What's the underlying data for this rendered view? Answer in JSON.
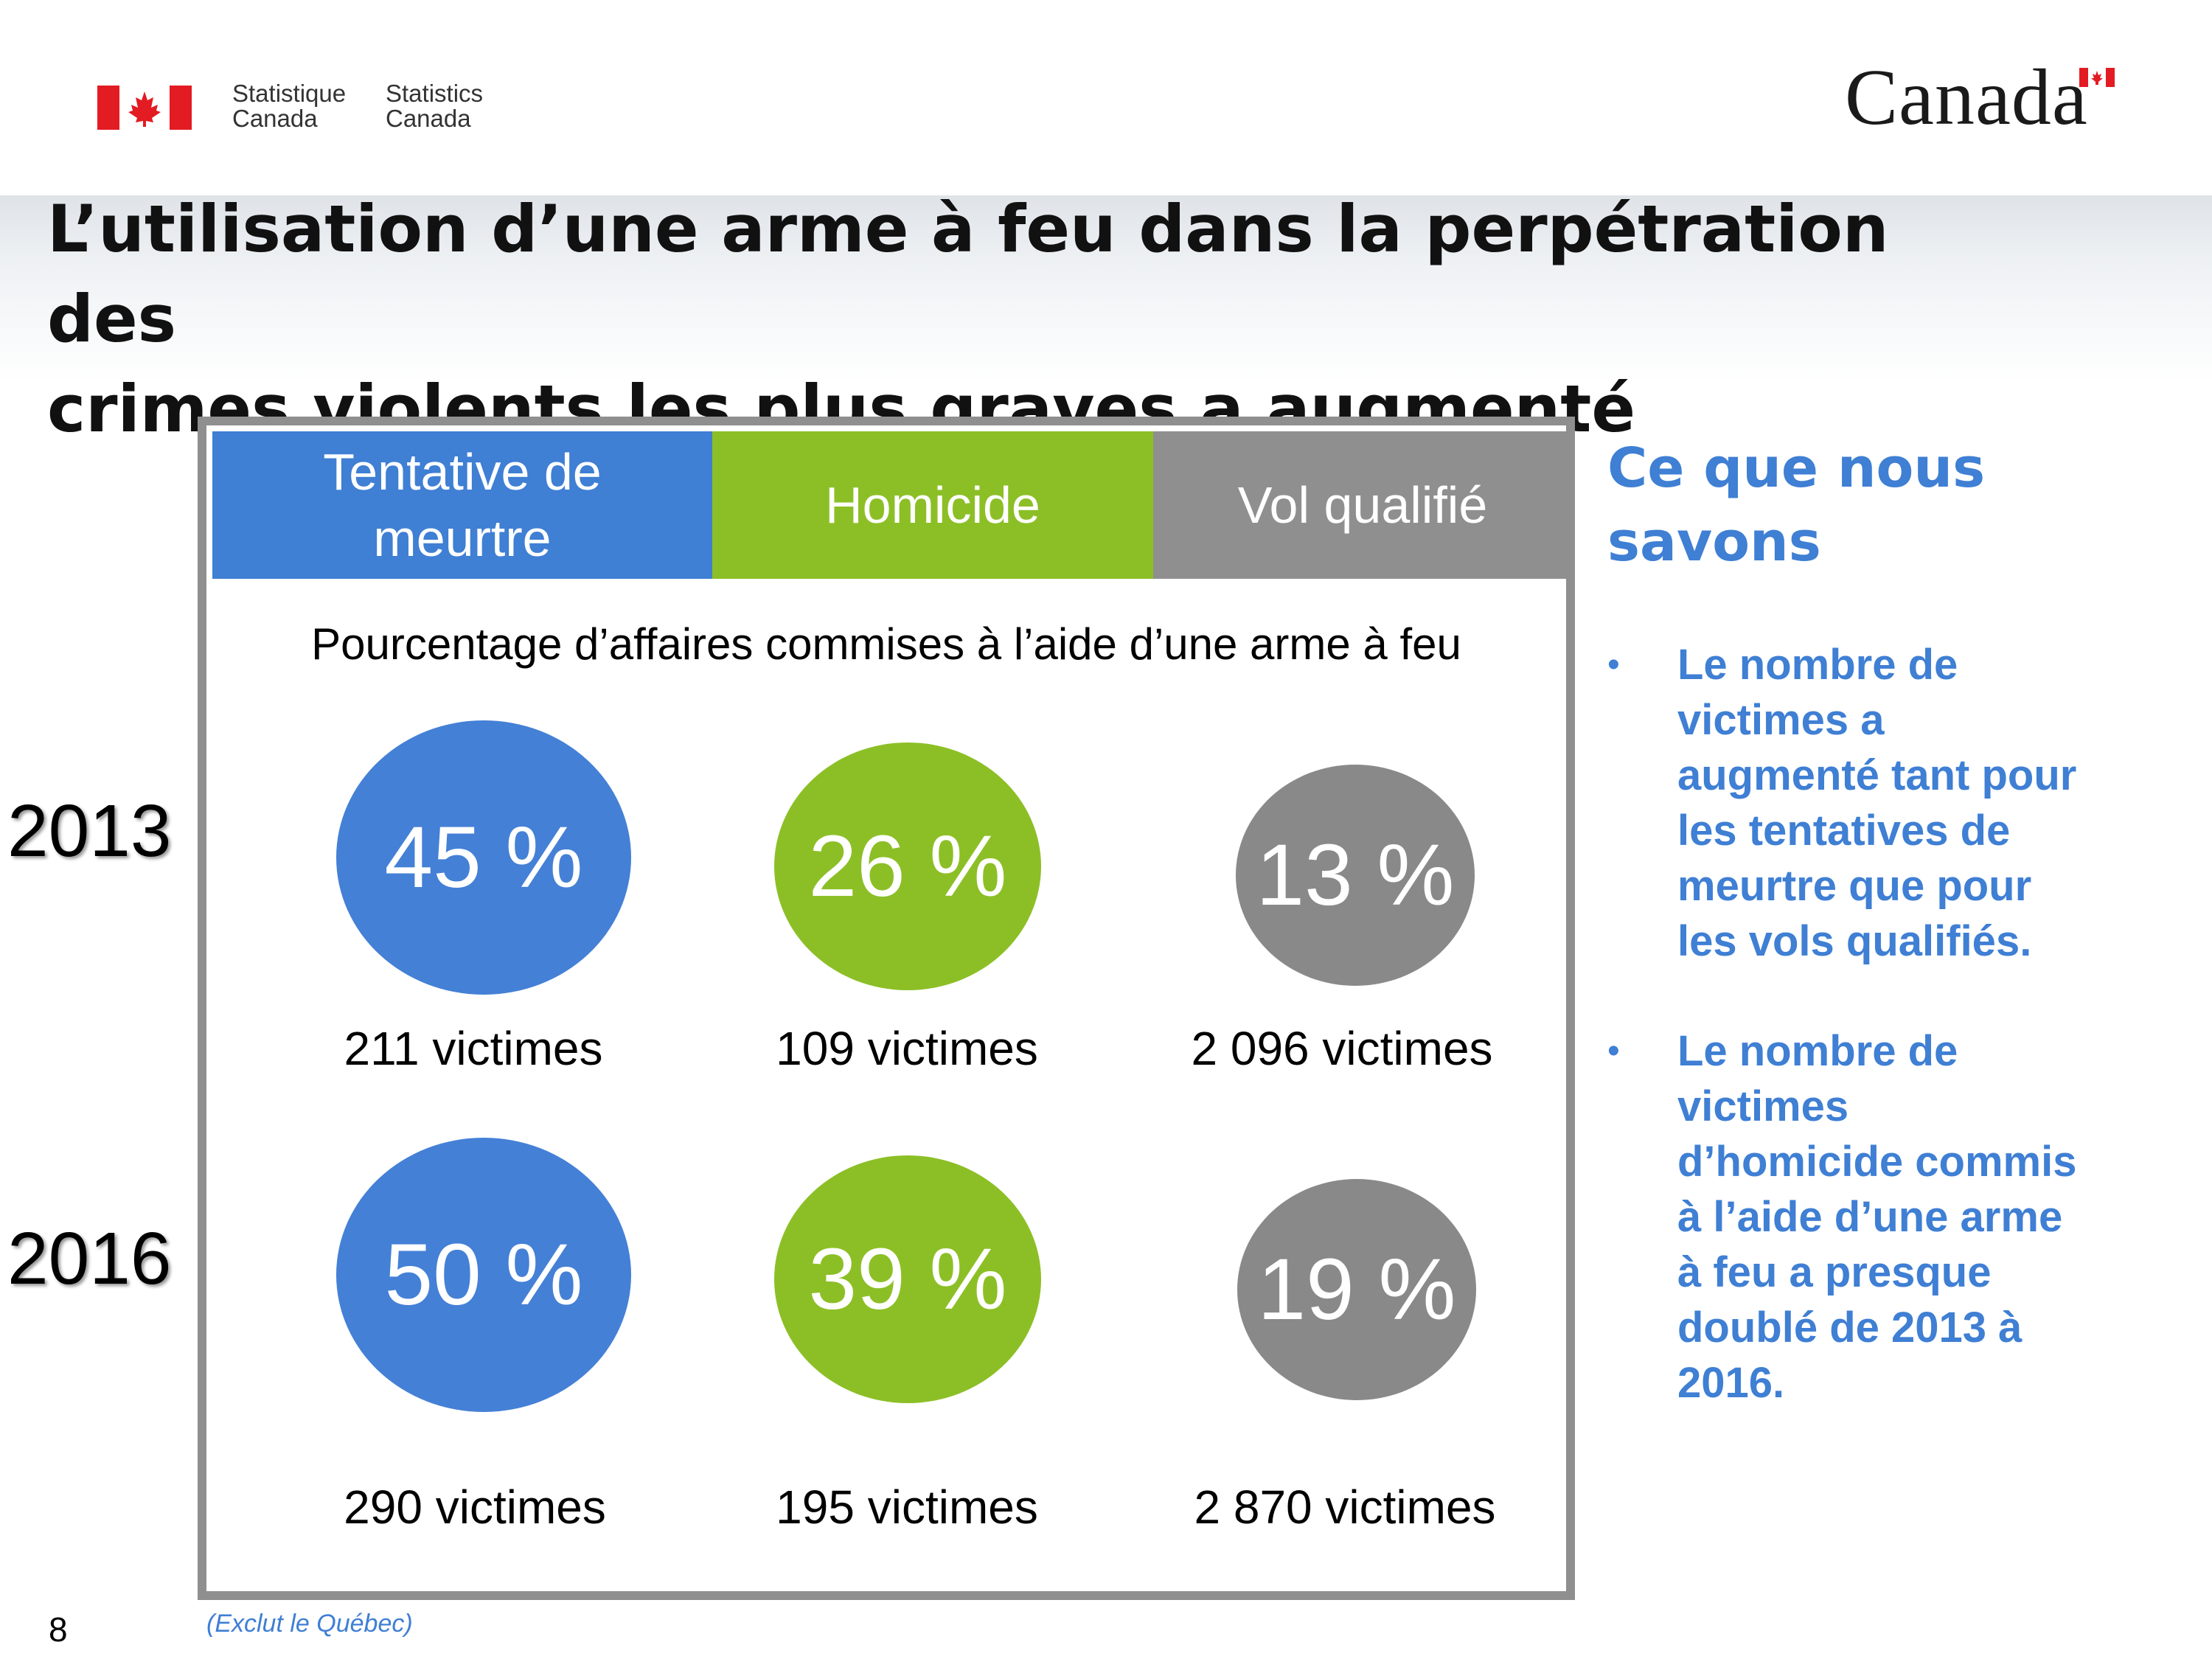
{
  "header": {
    "signature_fr": [
      "Statistique",
      "Canada"
    ],
    "signature_en": [
      "Statistics",
      "Canada"
    ],
    "wordmark": "Canada",
    "colors": {
      "flag_red": "#e31b23"
    }
  },
  "title_lines": [
    "L’utilisation d’une arme à feu dans la perpétration des",
    "crimes violents les plus graves a augmenté"
  ],
  "table": {
    "columns": [
      {
        "label_lines": [
          "Tentative de",
          "meurtre"
        ],
        "color": "#3f7fd4"
      },
      {
        "label_lines": [
          "Homicide"
        ],
        "color": "#8cbf26"
      },
      {
        "label_lines": [
          "Vol qualifié"
        ],
        "color": "#8f8f8f"
      }
    ],
    "subtitle": "Pourcentage d’affaires commises à l’aide d’une arme à feu",
    "rows": [
      {
        "year": "2013",
        "cells": [
          {
            "percent": "45 %",
            "victims": "211 victimes"
          },
          {
            "percent": "26 %",
            "victims": "109 victimes"
          },
          {
            "percent": "13 %",
            "victims": "2 096 victimes"
          }
        ]
      },
      {
        "year": "2016",
        "cells": [
          {
            "percent": "50 %",
            "victims": "290 victimes"
          },
          {
            "percent": "39 %",
            "victims": "195 victimes"
          },
          {
            "percent": "19 %",
            "victims": "2 870 victimes"
          }
        ]
      }
    ]
  },
  "sidebar": {
    "heading_lines": [
      "Ce que nous",
      "savons"
    ],
    "bullet_symbol": "•",
    "bullets": [
      [
        "Le nombre de",
        "victimes a",
        "augmenté tant pour",
        "les tentatives de",
        "meurtre que pour",
        "les vols qualifiés."
      ],
      [
        "Le nombre de",
        "victimes",
        "d’homicide commis",
        "à l’aide d’une arme",
        "à feu a presque",
        "doublé de 2013 à",
        "2016."
      ]
    ]
  },
  "footer": {
    "page_number": "8",
    "note": "(Exclut le Québec)"
  }
}
